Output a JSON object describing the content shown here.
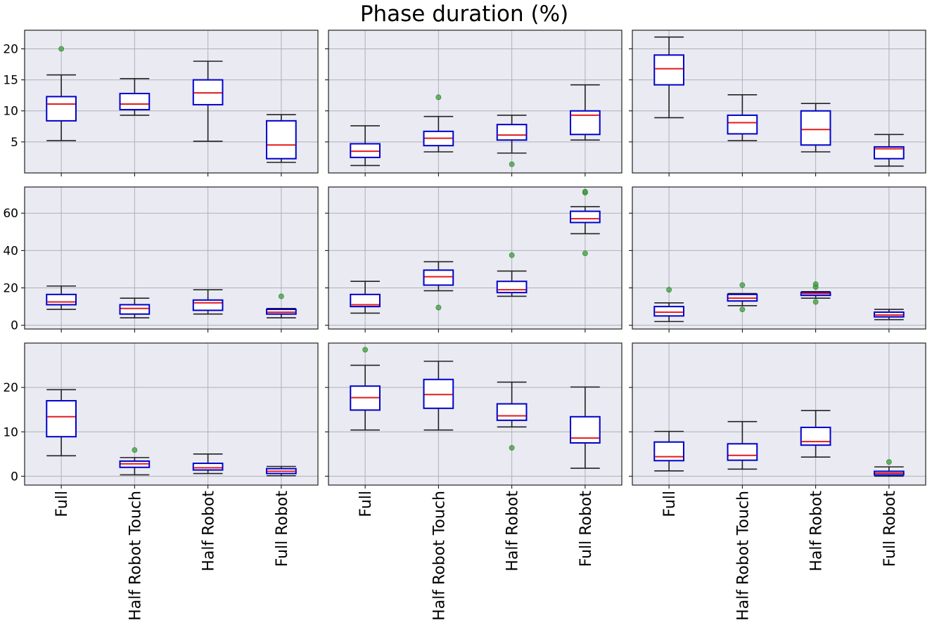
{
  "chart_data": {
    "type": "box",
    "title": "Phase duration (%)",
    "categories": [
      "Full",
      "Half Robot Touch",
      "Half Robot",
      "Full Robot"
    ],
    "grid": true,
    "colors": {
      "panel_bg": "#eaeaf2",
      "grid": "#b0b0b8",
      "box": "#0000cc",
      "median": "#e41a1c",
      "whisker": "#222222",
      "outlier": "#3aa03a"
    },
    "rows": [
      {
        "ylim": [
          0,
          23
        ],
        "yticks": [
          5,
          10,
          15,
          20
        ],
        "panels": [
          {
            "boxes": [
              {
                "q1": 8.4,
                "median": 11.1,
                "q3": 12.3,
                "whislo": 5.2,
                "whishi": 15.8,
                "fliers": [
                  20.0
                ]
              },
              {
                "q1": 10.2,
                "median": 11.1,
                "q3": 12.8,
                "whislo": 9.3,
                "whishi": 15.2,
                "fliers": []
              },
              {
                "q1": 11.0,
                "median": 12.9,
                "q3": 15.0,
                "whislo": 5.1,
                "whishi": 18.0,
                "fliers": []
              },
              {
                "q1": 2.3,
                "median": 4.5,
                "q3": 8.4,
                "whislo": 1.7,
                "whishi": 9.4,
                "fliers": []
              }
            ]
          },
          {
            "boxes": [
              {
                "q1": 2.5,
                "median": 3.5,
                "q3": 4.7,
                "whislo": 1.2,
                "whishi": 7.6,
                "fliers": []
              },
              {
                "q1": 4.4,
                "median": 5.6,
                "q3": 6.7,
                "whislo": 3.4,
                "whishi": 9.1,
                "fliers": [
                  12.2
                ]
              },
              {
                "q1": 5.3,
                "median": 6.1,
                "q3": 7.8,
                "whislo": 3.2,
                "whishi": 9.3,
                "fliers": [
                  1.4
                ]
              },
              {
                "q1": 6.2,
                "median": 9.3,
                "q3": 10.0,
                "whislo": 5.3,
                "whishi": 14.2,
                "fliers": []
              }
            ]
          },
          {
            "boxes": [
              {
                "q1": 14.2,
                "median": 16.8,
                "q3": 19.0,
                "whislo": 8.9,
                "whishi": 21.9,
                "fliers": []
              },
              {
                "q1": 6.3,
                "median": 8.1,
                "q3": 9.3,
                "whislo": 5.2,
                "whishi": 12.6,
                "fliers": []
              },
              {
                "q1": 4.5,
                "median": 7.0,
                "q3": 10.0,
                "whislo": 3.4,
                "whishi": 11.2,
                "fliers": []
              },
              {
                "q1": 2.3,
                "median": 3.9,
                "q3": 4.2,
                "whislo": 1.1,
                "whishi": 6.2,
                "fliers": []
              }
            ]
          }
        ]
      },
      {
        "ylim": [
          -2,
          74
        ],
        "yticks": [
          0,
          20,
          40,
          60
        ],
        "panels": [
          {
            "boxes": [
              {
                "q1": 11.0,
                "median": 12.5,
                "q3": 16.5,
                "whislo": 8.5,
                "whishi": 21.0,
                "fliers": []
              },
              {
                "q1": 6.0,
                "median": 9.0,
                "q3": 11.0,
                "whislo": 4.0,
                "whishi": 14.5,
                "fliers": []
              },
              {
                "q1": 8.0,
                "median": 12.0,
                "q3": 13.5,
                "whislo": 6.0,
                "whishi": 19.0,
                "fliers": []
              },
              {
                "q1": 6.0,
                "median": 7.0,
                "q3": 8.5,
                "whislo": 4.0,
                "whishi": 9.0,
                "fliers": [
                  15.5
                ]
              }
            ]
          },
          {
            "boxes": [
              {
                "q1": 10.0,
                "median": 11.0,
                "q3": 16.5,
                "whislo": 6.5,
                "whishi": 23.5,
                "fliers": []
              },
              {
                "q1": 21.5,
                "median": 26.0,
                "q3": 29.5,
                "whislo": 18.5,
                "whishi": 34.0,
                "fliers": [
                  9.5
                ]
              },
              {
                "q1": 17.5,
                "median": 19.0,
                "q3": 23.5,
                "whislo": 15.5,
                "whishi": 29.0,
                "fliers": [
                  37.5
                ]
              },
              {
                "q1": 55.0,
                "median": 57.0,
                "q3": 61.0,
                "whislo": 49.0,
                "whishi": 63.5,
                "fliers": [
                  38.5,
                  71.0,
                  71.5
                ]
              }
            ]
          },
          {
            "boxes": [
              {
                "q1": 5.0,
                "median": 7.0,
                "q3": 10.0,
                "whislo": 2.0,
                "whishi": 12.0,
                "fliers": [
                  19.0
                ]
              },
              {
                "q1": 13.0,
                "median": 14.5,
                "q3": 16.5,
                "whislo": 10.5,
                "whishi": 17.0,
                "fliers": [
                  8.5,
                  21.5
                ]
              },
              {
                "q1": 16.0,
                "median": 17.0,
                "q3": 17.5,
                "whislo": 14.5,
                "whishi": 18.0,
                "fliers": [
                  12.5,
                  20.5,
                  22.0
                ]
              },
              {
                "q1": 4.5,
                "median": 5.5,
                "q3": 7.0,
                "whislo": 3.0,
                "whishi": 8.5,
                "fliers": []
              }
            ]
          }
        ]
      },
      {
        "ylim": [
          -2,
          30
        ],
        "yticks": [
          0,
          10,
          20
        ],
        "panels": [
          {
            "boxes": [
              {
                "q1": 8.9,
                "median": 13.4,
                "q3": 17.0,
                "whislo": 4.6,
                "whishi": 19.5,
                "fliers": []
              },
              {
                "q1": 2.0,
                "median": 2.8,
                "q3": 3.4,
                "whislo": 0.3,
                "whishi": 4.2,
                "fliers": [
                  5.9
                ]
              },
              {
                "q1": 1.4,
                "median": 1.9,
                "q3": 2.9,
                "whislo": 0.6,
                "whishi": 5.0,
                "fliers": []
              },
              {
                "q1": 0.6,
                "median": 1.1,
                "q3": 1.7,
                "whislo": 0.1,
                "whishi": 2.2,
                "fliers": []
              }
            ]
          },
          {
            "boxes": [
              {
                "q1": 14.9,
                "median": 17.7,
                "q3": 20.3,
                "whislo": 10.4,
                "whishi": 25.0,
                "fliers": [
                  28.5
                ]
              },
              {
                "q1": 15.3,
                "median": 18.4,
                "q3": 21.8,
                "whislo": 10.4,
                "whishi": 25.9,
                "fliers": []
              },
              {
                "q1": 12.6,
                "median": 13.6,
                "q3": 16.3,
                "whislo": 11.1,
                "whishi": 21.2,
                "fliers": [
                  6.4
                ]
              },
              {
                "q1": 7.5,
                "median": 8.6,
                "q3": 13.4,
                "whislo": 1.8,
                "whishi": 20.1,
                "fliers": []
              }
            ]
          },
          {
            "boxes": [
              {
                "q1": 3.5,
                "median": 4.4,
                "q3": 7.7,
                "whislo": 1.2,
                "whishi": 10.1,
                "fliers": []
              },
              {
                "q1": 3.6,
                "median": 4.7,
                "q3": 7.3,
                "whislo": 1.6,
                "whishi": 12.3,
                "fliers": []
              },
              {
                "q1": 7.0,
                "median": 7.8,
                "q3": 11.0,
                "whislo": 4.3,
                "whishi": 14.8,
                "fliers": []
              },
              {
                "q1": 0.3,
                "median": 0.7,
                "q3": 1.1,
                "whislo": 0.0,
                "whishi": 2.1,
                "fliers": [
                  3.2
                ]
              }
            ]
          }
        ]
      }
    ]
  }
}
